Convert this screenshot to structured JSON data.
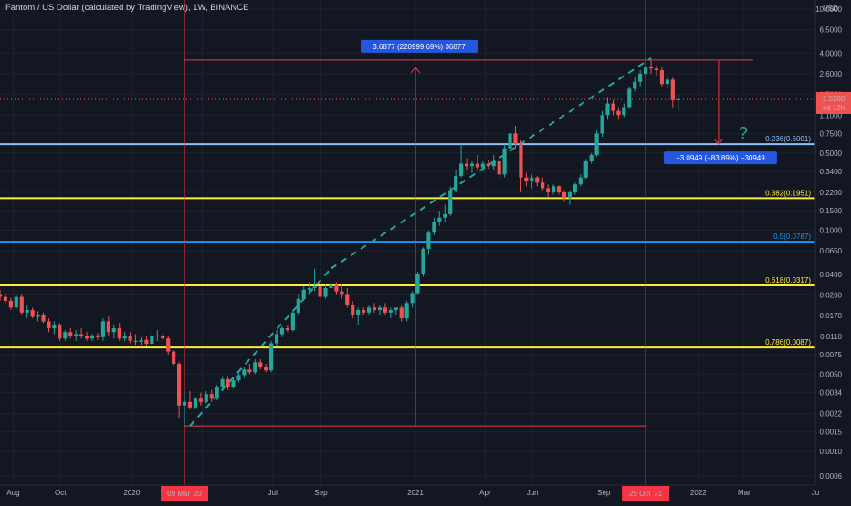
{
  "header": {
    "title": "Fantom / US Dollar (calculated by TradingView), 1W, BINANCE"
  },
  "price_axis": {
    "currency": "USD",
    "ticks": [
      "15.0000",
      "10.0000",
      "6.5000",
      "4.0000",
      "2.6000",
      "1.7000",
      "1.1000",
      "0.7500",
      "0.5000",
      "0.3400",
      "0.2200",
      "0.1500",
      "0.1000",
      "0.0650",
      "0.0400",
      "0.0260",
      "0.0170",
      "0.0110",
      "0.0075",
      "0.0050",
      "0.0034",
      "0.0022",
      "0.0015",
      "0.0010",
      "0.0006"
    ],
    "current_price": "1.5280",
    "countdown": "4d 12h"
  },
  "time_axis": {
    "ticks": [
      "Aug",
      "Oct",
      "2020",
      "Apr",
      "Jul",
      "Sep",
      "2021",
      "Apr",
      "Jun",
      "Sep",
      "2022",
      "Mar",
      "Ju"
    ],
    "highlights": [
      "09 Mar '20",
      "25 Oct '21"
    ]
  },
  "fib_levels": [
    {
      "label": "0.236(0.6001)",
      "value": 0.6001,
      "color": "#90bff9"
    },
    {
      "label": "0.382(0.1951)",
      "value": 0.1951,
      "color": "#ffeb3b"
    },
    {
      "label": "0.5(0.0787)",
      "value": 0.0787,
      "color": "#2196f3"
    },
    {
      "label": "0.618(0.0317)",
      "value": 0.0317,
      "color": "#ffeb3b"
    },
    {
      "label": "0.786(0.0087)",
      "value": 0.0087,
      "color": "#ffeb3b"
    }
  ],
  "annotations": {
    "measure_up": "3.6877 (220999.69%) 36877",
    "measure_down": "−3.0949 (−83.89%) −30949",
    "question_mark": "?"
  },
  "colors": {
    "background": "#131722",
    "up": "#26a69a",
    "down": "#ef5350",
    "measure_line": "#f23645",
    "trend_line": "#26a69a",
    "badge_fill": "#2962ff",
    "axis_text": "#b2b5be"
  },
  "chart_data": {
    "type": "candlestick",
    "title": "Fantom / US Dollar (calculated by TradingView), 1W, BINANCE",
    "y_scale": "log",
    "ylim": [
      0.0006,
      15
    ],
    "x_range": [
      "2019-07-15",
      "2022-06-01"
    ],
    "candles": [
      [
        "2019-07-15",
        0.026,
        0.029,
        0.023,
        0.025
      ],
      [
        "2019-07-22",
        0.025,
        0.027,
        0.022,
        0.023
      ],
      [
        "2019-07-29",
        0.023,
        0.0245,
        0.019,
        0.02
      ],
      [
        "2019-08-05",
        0.02,
        0.026,
        0.0195,
        0.025
      ],
      [
        "2019-08-12",
        0.025,
        0.0265,
        0.017,
        0.018
      ],
      [
        "2019-08-19",
        0.018,
        0.021,
        0.016,
        0.019
      ],
      [
        "2019-08-26",
        0.019,
        0.02,
        0.016,
        0.0165
      ],
      [
        "2019-09-02",
        0.0165,
        0.0185,
        0.015,
        0.017
      ],
      [
        "2019-09-09",
        0.017,
        0.018,
        0.0145,
        0.015
      ],
      [
        "2019-09-16",
        0.015,
        0.016,
        0.012,
        0.013
      ],
      [
        "2019-09-23",
        0.013,
        0.015,
        0.0115,
        0.014
      ],
      [
        "2019-09-30",
        0.014,
        0.0145,
        0.01,
        0.0105
      ],
      [
        "2019-10-07",
        0.0105,
        0.0125,
        0.01,
        0.012
      ],
      [
        "2019-10-14",
        0.012,
        0.013,
        0.0105,
        0.011
      ],
      [
        "2019-10-21",
        0.011,
        0.0125,
        0.01,
        0.0115
      ],
      [
        "2019-10-28",
        0.0115,
        0.013,
        0.0105,
        0.011
      ],
      [
        "2019-11-04",
        0.011,
        0.012,
        0.01,
        0.0105
      ],
      [
        "2019-11-11",
        0.0105,
        0.0115,
        0.01,
        0.0112
      ],
      [
        "2019-11-18",
        0.0112,
        0.0118,
        0.0102,
        0.0108
      ],
      [
        "2019-11-25",
        0.0108,
        0.016,
        0.01,
        0.015
      ],
      [
        "2019-12-02",
        0.015,
        0.0165,
        0.011,
        0.012
      ],
      [
        "2019-12-09",
        0.012,
        0.014,
        0.0105,
        0.013
      ],
      [
        "2019-12-16",
        0.013,
        0.0145,
        0.01,
        0.0105
      ],
      [
        "2019-12-23",
        0.0105,
        0.012,
        0.01,
        0.011
      ],
      [
        "2019-12-30",
        0.011,
        0.012,
        0.0095,
        0.01
      ],
      [
        "2020-01-06",
        0.01,
        0.0115,
        0.0092,
        0.0098
      ],
      [
        "2020-01-13",
        0.0098,
        0.0108,
        0.0092,
        0.0102
      ],
      [
        "2020-01-20",
        0.0102,
        0.011,
        0.009,
        0.0094
      ],
      [
        "2020-01-27",
        0.0094,
        0.012,
        0.0092,
        0.011
      ],
      [
        "2020-02-03",
        0.011,
        0.0125,
        0.01,
        0.0112
      ],
      [
        "2020-02-10",
        0.0112,
        0.0118,
        0.0098,
        0.0105
      ],
      [
        "2020-02-17",
        0.0105,
        0.011,
        0.0075,
        0.008
      ],
      [
        "2020-02-24",
        0.008,
        0.0082,
        0.006,
        0.0062
      ],
      [
        "2020-03-02",
        0.0062,
        0.0065,
        0.002,
        0.0026
      ],
      [
        "2020-03-09",
        0.0026,
        0.0034,
        0.0017,
        0.0028
      ],
      [
        "2020-03-16",
        0.0028,
        0.0035,
        0.0024,
        0.0025
      ],
      [
        "2020-03-23",
        0.0025,
        0.0031,
        0.0024,
        0.003
      ],
      [
        "2020-03-30",
        0.003,
        0.0034,
        0.0026,
        0.0028
      ],
      [
        "2020-04-06",
        0.0028,
        0.0035,
        0.0027,
        0.0033
      ],
      [
        "2020-04-13",
        0.0033,
        0.0036,
        0.0028,
        0.003
      ],
      [
        "2020-04-20",
        0.003,
        0.004,
        0.0029,
        0.0038
      ],
      [
        "2020-04-27",
        0.0038,
        0.0048,
        0.0035,
        0.0045
      ],
      [
        "2020-05-04",
        0.0045,
        0.0048,
        0.0036,
        0.0038
      ],
      [
        "2020-05-11",
        0.0038,
        0.0046,
        0.0037,
        0.0044
      ],
      [
        "2020-05-18",
        0.0044,
        0.0052,
        0.0042,
        0.0049
      ],
      [
        "2020-05-25",
        0.0049,
        0.0058,
        0.0046,
        0.0055
      ],
      [
        "2020-06-01",
        0.0055,
        0.0062,
        0.005,
        0.0052
      ],
      [
        "2020-06-08",
        0.0052,
        0.0068,
        0.005,
        0.0064
      ],
      [
        "2020-06-15",
        0.0064,
        0.0068,
        0.0055,
        0.0058
      ],
      [
        "2020-06-22",
        0.0058,
        0.0062,
        0.0052,
        0.0054
      ],
      [
        "2020-06-29",
        0.0054,
        0.01,
        0.0052,
        0.0095
      ],
      [
        "2020-07-06",
        0.0095,
        0.0125,
        0.009,
        0.0115
      ],
      [
        "2020-07-13",
        0.0115,
        0.0135,
        0.0108,
        0.013
      ],
      [
        "2020-07-20",
        0.013,
        0.014,
        0.012,
        0.0125
      ],
      [
        "2020-07-27",
        0.0125,
        0.019,
        0.0122,
        0.018
      ],
      [
        "2020-08-03",
        0.018,
        0.026,
        0.017,
        0.024
      ],
      [
        "2020-08-10",
        0.024,
        0.031,
        0.023,
        0.029
      ],
      [
        "2020-08-17",
        0.029,
        0.034,
        0.027,
        0.03
      ],
      [
        "2020-08-24",
        0.03,
        0.045,
        0.028,
        0.031
      ],
      [
        "2020-08-31",
        0.031,
        0.034,
        0.023,
        0.025
      ],
      [
        "2020-09-07",
        0.025,
        0.032,
        0.024,
        0.03
      ],
      [
        "2020-09-14",
        0.03,
        0.042,
        0.028,
        0.032
      ],
      [
        "2020-09-21",
        0.032,
        0.034,
        0.026,
        0.028
      ],
      [
        "2020-09-28",
        0.028,
        0.033,
        0.024,
        0.026
      ],
      [
        "2020-10-05",
        0.026,
        0.03,
        0.02,
        0.021
      ],
      [
        "2020-10-12",
        0.021,
        0.023,
        0.016,
        0.017
      ],
      [
        "2020-10-19",
        0.017,
        0.02,
        0.014,
        0.019
      ],
      [
        "2020-10-26",
        0.019,
        0.02,
        0.017,
        0.018
      ],
      [
        "2020-11-02",
        0.018,
        0.021,
        0.017,
        0.02
      ],
      [
        "2020-11-09",
        0.02,
        0.022,
        0.018,
        0.019
      ],
      [
        "2020-11-16",
        0.019,
        0.021,
        0.017,
        0.02
      ],
      [
        "2020-11-23",
        0.02,
        0.022,
        0.017,
        0.018
      ],
      [
        "2020-11-30",
        0.018,
        0.02,
        0.016,
        0.019
      ],
      [
        "2020-12-07",
        0.019,
        0.02,
        0.017,
        0.02
      ],
      [
        "2020-12-14",
        0.02,
        0.021,
        0.015,
        0.016
      ],
      [
        "2020-12-21",
        0.016,
        0.023,
        0.015,
        0.022
      ],
      [
        "2020-12-28",
        0.022,
        0.028,
        0.02,
        0.027
      ],
      [
        "2021-01-04",
        0.027,
        0.042,
        0.026,
        0.04
      ],
      [
        "2021-01-11",
        0.04,
        0.07,
        0.038,
        0.068
      ],
      [
        "2021-01-18",
        0.068,
        0.1,
        0.06,
        0.095
      ],
      [
        "2021-01-25",
        0.095,
        0.13,
        0.09,
        0.12
      ],
      [
        "2021-02-01",
        0.12,
        0.15,
        0.11,
        0.13
      ],
      [
        "2021-02-08",
        0.13,
        0.17,
        0.12,
        0.14
      ],
      [
        "2021-02-15",
        0.14,
        0.25,
        0.135,
        0.23
      ],
      [
        "2021-02-22",
        0.23,
        0.35,
        0.22,
        0.31
      ],
      [
        "2021-03-01",
        0.31,
        0.6,
        0.3,
        0.4
      ],
      [
        "2021-03-08",
        0.4,
        0.45,
        0.35,
        0.38
      ],
      [
        "2021-03-15",
        0.38,
        0.42,
        0.33,
        0.4
      ],
      [
        "2021-03-22",
        0.4,
        0.48,
        0.35,
        0.37
      ],
      [
        "2021-03-29",
        0.37,
        0.42,
        0.34,
        0.4
      ],
      [
        "2021-04-05",
        0.4,
        0.43,
        0.36,
        0.38
      ],
      [
        "2021-04-12",
        0.38,
        0.48,
        0.35,
        0.42
      ],
      [
        "2021-04-19",
        0.42,
        0.44,
        0.28,
        0.32
      ],
      [
        "2021-04-26",
        0.32,
        0.6,
        0.3,
        0.55
      ],
      [
        "2021-05-03",
        0.55,
        0.85,
        0.5,
        0.75
      ],
      [
        "2021-05-10",
        0.75,
        0.88,
        0.55,
        0.6
      ],
      [
        "2021-05-17",
        0.6,
        0.65,
        0.22,
        0.3
      ],
      [
        "2021-05-24",
        0.3,
        0.33,
        0.25,
        0.28
      ],
      [
        "2021-05-31",
        0.28,
        0.32,
        0.24,
        0.3
      ],
      [
        "2021-06-07",
        0.3,
        0.31,
        0.25,
        0.27
      ],
      [
        "2021-06-14",
        0.27,
        0.3,
        0.23,
        0.24
      ],
      [
        "2021-06-21",
        0.24,
        0.26,
        0.2,
        0.22
      ],
      [
        "2021-06-28",
        0.22,
        0.26,
        0.21,
        0.25
      ],
      [
        "2021-07-05",
        0.25,
        0.255,
        0.21,
        0.22
      ],
      [
        "2021-07-12",
        0.22,
        0.23,
        0.18,
        0.195
      ],
      [
        "2021-07-19",
        0.195,
        0.23,
        0.17,
        0.22
      ],
      [
        "2021-07-26",
        0.22,
        0.27,
        0.21,
        0.26
      ],
      [
        "2021-08-02",
        0.26,
        0.32,
        0.25,
        0.3
      ],
      [
        "2021-08-09",
        0.3,
        0.44,
        0.29,
        0.42
      ],
      [
        "2021-08-16",
        0.42,
        0.5,
        0.4,
        0.48
      ],
      [
        "2021-08-23",
        0.48,
        0.8,
        0.46,
        0.75
      ],
      [
        "2021-08-30",
        0.75,
        1.2,
        0.7,
        1.1
      ],
      [
        "2021-09-06",
        1.1,
        1.6,
        1.0,
        1.4
      ],
      [
        "2021-09-13",
        1.4,
        1.5,
        1.1,
        1.2
      ],
      [
        "2021-09-20",
        1.2,
        1.3,
        1.0,
        1.1
      ],
      [
        "2021-09-27",
        1.1,
        1.4,
        1.05,
        1.3
      ],
      [
        "2021-10-04",
        1.3,
        2.0,
        1.25,
        1.9
      ],
      [
        "2021-10-11",
        1.9,
        2.4,
        1.8,
        2.2
      ],
      [
        "2021-10-18",
        2.2,
        2.8,
        2.0,
        2.6
      ],
      [
        "2021-10-25",
        2.6,
        3.4,
        2.4,
        3.0
      ],
      [
        "2021-11-01",
        3.0,
        3.46,
        2.6,
        2.9
      ],
      [
        "2021-11-08",
        2.9,
        3.1,
        2.5,
        2.8
      ],
      [
        "2021-11-15",
        2.8,
        3.0,
        2.0,
        2.1
      ],
      [
        "2021-11-22",
        2.1,
        2.5,
        1.9,
        2.3
      ],
      [
        "2021-11-29",
        2.3,
        2.4,
        1.3,
        1.5
      ],
      [
        "2021-12-06",
        1.5,
        1.7,
        1.2,
        1.528
      ]
    ],
    "fib_levels": [
      0.6001,
      0.1951,
      0.0787,
      0.0317,
      0.0087
    ]
  }
}
